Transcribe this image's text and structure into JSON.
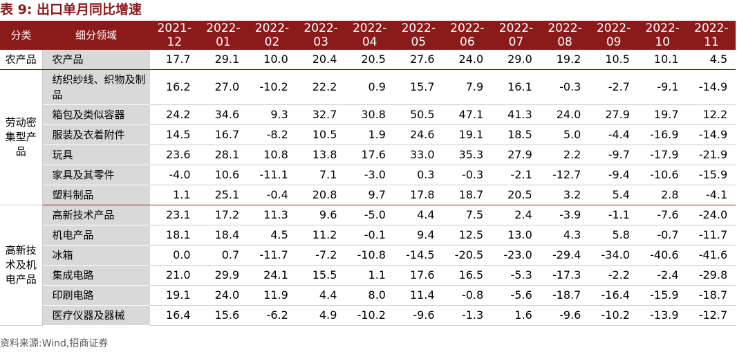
{
  "title": "表 9:  出口单月同比增速",
  "header": {
    "category": "分类",
    "subcategory": "细分领域",
    "months": [
      "2021-\n12",
      "2022-\n01",
      "2022-\n02",
      "2022-\n03",
      "2022-\n04",
      "2022-\n05",
      "2022-\n06",
      "2022-\n07",
      "2022-\n08",
      "2022-\n09",
      "2022-\n10",
      "2022-\n11"
    ]
  },
  "groups": [
    {
      "name": "农产品",
      "rows": [
        {
          "label": "农产品",
          "values": [
            "17.7",
            "29.1",
            "10.0",
            "20.4",
            "20.5",
            "27.6",
            "24.0",
            "29.0",
            "19.2",
            "10.5",
            "10.1",
            "4.5"
          ]
        }
      ]
    },
    {
      "name": "劳动密集型产品",
      "rows": [
        {
          "label": "纺织纱线、织物及制品",
          "values": [
            "16.2",
            "27.0",
            "-10.2",
            "22.2",
            "0.9",
            "15.7",
            "7.9",
            "16.1",
            "-0.3",
            "-2.7",
            "-9.1",
            "-14.9"
          ]
        },
        {
          "label": "箱包及类似容器",
          "values": [
            "24.2",
            "34.6",
            "9.3",
            "32.7",
            "30.8",
            "50.5",
            "47.1",
            "41.3",
            "24.0",
            "27.9",
            "19.7",
            "12.2"
          ]
        },
        {
          "label": "服装及衣着附件",
          "values": [
            "14.5",
            "16.7",
            "-8.2",
            "10.5",
            "1.9",
            "24.6",
            "19.1",
            "18.5",
            "5.0",
            "-4.4",
            "-16.9",
            "-14.9"
          ]
        },
        {
          "label": "玩具",
          "values": [
            "23.6",
            "28.1",
            "10.8",
            "13.8",
            "17.6",
            "33.0",
            "35.3",
            "27.9",
            "2.2",
            "-9.7",
            "-17.9",
            "-21.9"
          ]
        },
        {
          "label": "家具及其零件",
          "values": [
            "-4.0",
            "10.6",
            "-11.1",
            "7.1",
            "-3.0",
            "0.3",
            "-0.3",
            "-2.1",
            "-12.7",
            "-9.4",
            "-10.6",
            "-15.9"
          ]
        },
        {
          "label": "塑料制品",
          "values": [
            "1.1",
            "25.1",
            "-0.4",
            "20.8",
            "9.7",
            "17.8",
            "18.7",
            "20.5",
            "3.2",
            "5.4",
            "2.8",
            "-4.1"
          ]
        }
      ]
    },
    {
      "name": "高新技术及机电产品",
      "rows": [
        {
          "label": "高新技术产品",
          "values": [
            "23.1",
            "17.2",
            "11.3",
            "9.6",
            "-5.0",
            "4.4",
            "7.5",
            "2.4",
            "-3.9",
            "-1.1",
            "-7.6",
            "-24.0"
          ]
        },
        {
          "label": "机电产品",
          "values": [
            "18.1",
            "18.4",
            "4.5",
            "11.2",
            "-0.1",
            "9.4",
            "12.5",
            "13.0",
            "4.3",
            "5.8",
            "-0.7",
            "-11.7"
          ]
        },
        {
          "label": "冰箱",
          "values": [
            "0.0",
            "0.7",
            "-11.7",
            "-7.2",
            "-10.8",
            "-14.5",
            "-20.5",
            "-23.0",
            "-29.4",
            "-34.0",
            "-40.6",
            "-41.6"
          ]
        },
        {
          "label": "集成电路",
          "values": [
            "21.0",
            "29.9",
            "24.1",
            "15.5",
            "1.1",
            "17.6",
            "16.5",
            "-5.3",
            "-17.3",
            "-2.2",
            "-2.4",
            "-29.8"
          ]
        },
        {
          "label": "印刷电路",
          "values": [
            "19.1",
            "24.0",
            "11.9",
            "4.4",
            "8.0",
            "11.4",
            "-0.8",
            "-5.6",
            "-18.7",
            "-16.4",
            "-15.9",
            "-18.7"
          ]
        },
        {
          "label": "医疗仪器及器械",
          "values": [
            "16.4",
            "15.6",
            "-6.2",
            "4.9",
            "-10.2",
            "-9.6",
            "-1.3",
            "1.6",
            "-9.6",
            "-10.2",
            "-13.9",
            "-12.7"
          ]
        }
      ]
    }
  ],
  "source": "资料来源:Wind,招商证券",
  "colors": {
    "header_bg": "#8b1a1a",
    "title": "#8b1a1a",
    "sub_bg": "#d9d9d9"
  }
}
